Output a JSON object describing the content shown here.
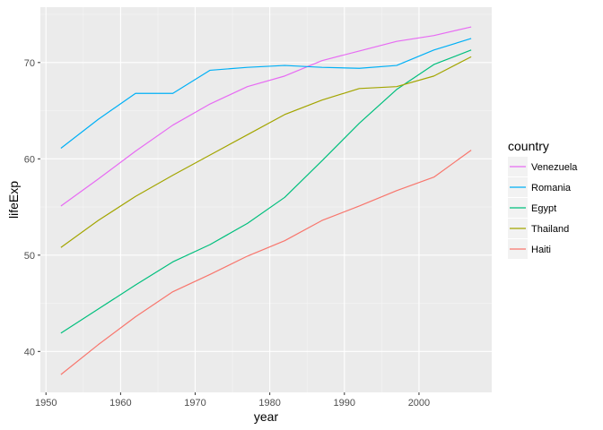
{
  "chart_data": {
    "type": "line",
    "xlabel": "year",
    "ylabel": "lifeExp",
    "xlim": [
      1949.25,
      2009.75
    ],
    "ylim": [
      35.75,
      75.75
    ],
    "x_ticks": [
      1950,
      1960,
      1970,
      1980,
      1990,
      2000
    ],
    "y_ticks": [
      40,
      50,
      60,
      70
    ],
    "grid": true,
    "background": "#EBEBEB",
    "legend": {
      "title": "country",
      "placement": "right",
      "entries": [
        "Venezuela",
        "Romania",
        "Egypt",
        "Thailand",
        "Haiti"
      ]
    },
    "x": [
      1952,
      1957,
      1962,
      1967,
      1972,
      1977,
      1982,
      1987,
      1992,
      1997,
      2002,
      2007
    ],
    "series": [
      {
        "name": "Venezuela",
        "color": "#E76BF3",
        "values": [
          55.1,
          57.9,
          60.8,
          63.5,
          65.7,
          67.5,
          68.6,
          70.2,
          71.2,
          72.2,
          72.8,
          73.7
        ]
      },
      {
        "name": "Romania",
        "color": "#00B0F6",
        "values": [
          61.1,
          64.1,
          66.8,
          66.8,
          69.2,
          69.5,
          69.7,
          69.5,
          69.4,
          69.7,
          71.3,
          72.5
        ]
      },
      {
        "name": "Egypt",
        "color": "#00BF7D",
        "values": [
          41.9,
          44.4,
          46.9,
          49.3,
          51.1,
          53.3,
          56.0,
          59.8,
          63.7,
          67.2,
          69.8,
          71.3
        ]
      },
      {
        "name": "Thailand",
        "color": "#A3A500",
        "values": [
          50.8,
          53.6,
          56.1,
          58.3,
          60.4,
          62.5,
          64.6,
          66.1,
          67.3,
          67.5,
          68.6,
          70.6
        ]
      },
      {
        "name": "Haiti",
        "color": "#F8766D",
        "values": [
          37.6,
          40.7,
          43.6,
          46.2,
          48.0,
          49.9,
          51.5,
          53.6,
          55.1,
          56.7,
          58.1,
          60.9
        ]
      }
    ]
  }
}
